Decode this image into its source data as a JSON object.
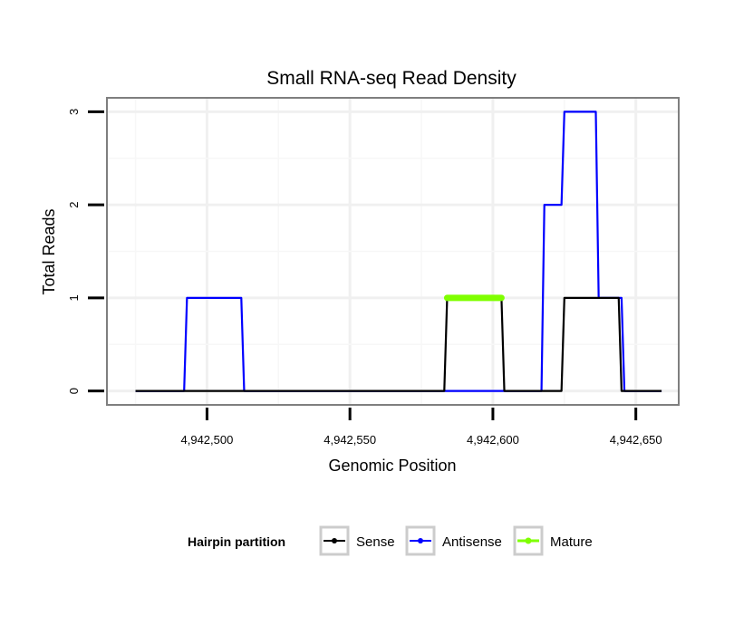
{
  "chart_data": {
    "type": "line",
    "title": "Small RNA-seq Read Density",
    "xlabel": "Genomic Position",
    "ylabel": "Total Reads",
    "xlim": [
      4942465,
      4942665
    ],
    "ylim": [
      -0.15,
      3.15
    ],
    "x_ticks": [
      4942500,
      4942550,
      4942600,
      4942650
    ],
    "x_tick_labels": [
      "4,942,500",
      "4,942,550",
      "4,942,600",
      "4,942,650"
    ],
    "y_ticks": [
      0,
      1,
      2,
      3
    ],
    "y_tick_labels": [
      "0",
      "1",
      "2",
      "3"
    ],
    "grid": true,
    "legend": {
      "title": "Hairpin partition",
      "placement": "bottom",
      "entries": [
        "Sense",
        "Antisense",
        "Mature"
      ]
    },
    "series": [
      {
        "name": "Sense",
        "color": "#000000",
        "x": [
          4942475,
          4942583,
          4942584,
          4942603,
          4942604,
          4942624,
          4942625,
          4942644,
          4942645,
          4942659
        ],
        "y": [
          0,
          0,
          1,
          1,
          0,
          0,
          1,
          1,
          0,
          0
        ]
      },
      {
        "name": "Antisense",
        "color": "#0000ff",
        "x": [
          4942475,
          4942492,
          4942493,
          4942512,
          4942513,
          4942617,
          4942618,
          4942624,
          4942625,
          4942636,
          4942637,
          4942645,
          4942646,
          4942659
        ],
        "y": [
          0,
          0,
          1,
          1,
          0,
          0,
          2,
          2,
          3,
          3,
          1,
          1,
          0,
          0
        ]
      },
      {
        "name": "Mature",
        "color": "#7fff00",
        "x": [
          4942584,
          4942603
        ],
        "y": [
          1,
          1
        ]
      }
    ]
  }
}
